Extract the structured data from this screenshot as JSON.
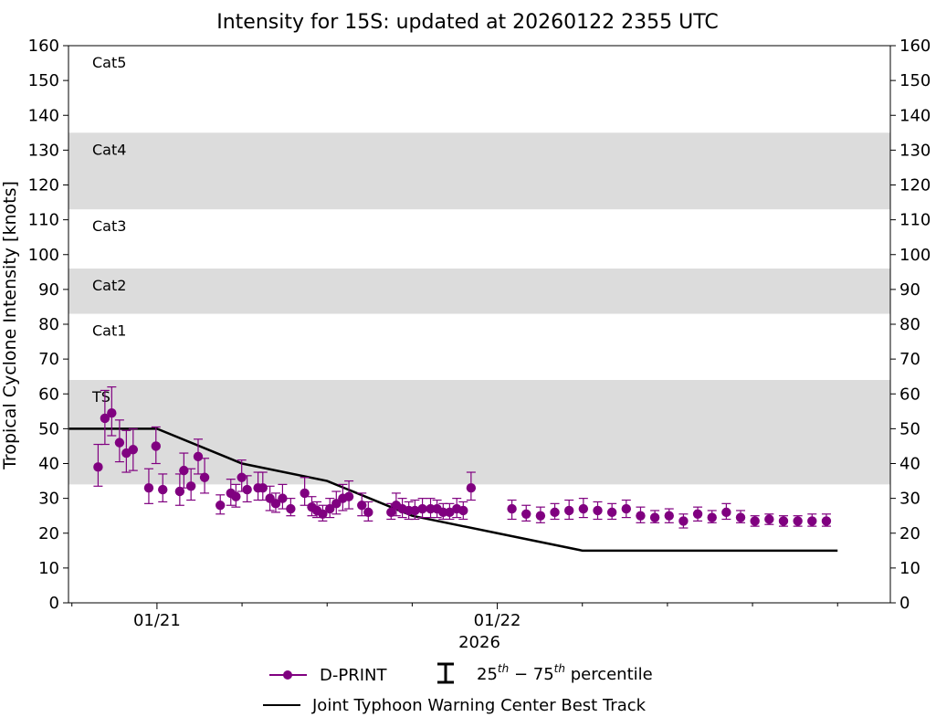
{
  "chart_data": {
    "type": "scatter",
    "title": "Intensity for 15S: updated at 20260122 2355 UTC",
    "ylabel": "Tropical Cyclone Intensity [knots]",
    "xlabel": "2026",
    "ylim": [
      0,
      160
    ],
    "yticks": [
      0,
      10,
      20,
      30,
      40,
      50,
      60,
      70,
      80,
      90,
      100,
      110,
      120,
      130,
      140,
      150,
      160
    ],
    "xlim": [
      -0.26,
      2.155
    ],
    "x_unit": "days since 01/21 00Z",
    "x_major_ticks": [
      {
        "x": 0,
        "label": "01/21"
      },
      {
        "x": 1,
        "label": "01/22"
      }
    ],
    "x_minor_ticks": [
      -0.25,
      0.25,
      0.5,
      0.75,
      1.25,
      1.5,
      1.75,
      2.0
    ],
    "grid": false,
    "category_bands": [
      {
        "label": "TS",
        "low": 34,
        "high": 64,
        "shaded": true
      },
      {
        "label": "Cat1",
        "low": 64,
        "high": 83,
        "shaded": false
      },
      {
        "label": "Cat2",
        "low": 83,
        "high": 96,
        "shaded": true
      },
      {
        "label": "Cat3",
        "low": 96,
        "high": 113,
        "shaded": false
      },
      {
        "label": "Cat4",
        "low": 113,
        "high": 135,
        "shaded": true
      },
      {
        "label": "Cat5",
        "low": 135,
        "high": 160,
        "shaded": false
      }
    ],
    "band_color": "#dcdcdc",
    "series": [
      {
        "name": "D-PRINT",
        "kind": "scatter-errorbar",
        "color": "#800080",
        "points": [
          {
            "x": -0.173,
            "y": 39,
            "lo": 33.5,
            "hi": 45.5
          },
          {
            "x": -0.153,
            "y": 53,
            "lo": 45.5,
            "hi": 61
          },
          {
            "x": -0.133,
            "y": 54.5,
            "lo": 48,
            "hi": 62
          },
          {
            "x": -0.11,
            "y": 46,
            "lo": 40.5,
            "hi": 52.5
          },
          {
            "x": -0.09,
            "y": 43,
            "lo": 37.5,
            "hi": 49.5
          },
          {
            "x": -0.07,
            "y": 44,
            "lo": 38,
            "hi": 50
          },
          {
            "x": -0.024,
            "y": 33,
            "lo": 28.5,
            "hi": 38.5
          },
          {
            "x": -0.003,
            "y": 45,
            "lo": 40,
            "hi": 50.5
          },
          {
            "x": 0.017,
            "y": 32.5,
            "lo": 29,
            "hi": 37
          },
          {
            "x": 0.067,
            "y": 32,
            "lo": 28,
            "hi": 37
          },
          {
            "x": 0.079,
            "y": 38,
            "lo": 33,
            "hi": 43
          },
          {
            "x": 0.1,
            "y": 33.5,
            "lo": 29.5,
            "hi": 38.5
          },
          {
            "x": 0.121,
            "y": 42,
            "lo": 37,
            "hi": 47
          },
          {
            "x": 0.14,
            "y": 36,
            "lo": 31.5,
            "hi": 41.5
          },
          {
            "x": 0.186,
            "y": 28,
            "lo": 25.5,
            "hi": 31
          },
          {
            "x": 0.217,
            "y": 31.5,
            "lo": 28,
            "hi": 35.5
          },
          {
            "x": 0.232,
            "y": 30.5,
            "lo": 27.5,
            "hi": 34
          },
          {
            "x": 0.249,
            "y": 36,
            "lo": 32,
            "hi": 41
          },
          {
            "x": 0.265,
            "y": 32.5,
            "lo": 29,
            "hi": 36.5
          },
          {
            "x": 0.297,
            "y": 33,
            "lo": 29.5,
            "hi": 37.5
          },
          {
            "x": 0.311,
            "y": 33,
            "lo": 29.5,
            "hi": 37.5
          },
          {
            "x": 0.332,
            "y": 30,
            "lo": 26.5,
            "hi": 33.5
          },
          {
            "x": 0.349,
            "y": 28.5,
            "lo": 26,
            "hi": 31.5
          },
          {
            "x": 0.369,
            "y": 30,
            "lo": 27,
            "hi": 34
          },
          {
            "x": 0.393,
            "y": 27,
            "lo": 25,
            "hi": 30
          },
          {
            "x": 0.434,
            "y": 31.5,
            "lo": 28,
            "hi": 36
          },
          {
            "x": 0.455,
            "y": 27.5,
            "lo": 25,
            "hi": 30.5
          },
          {
            "x": 0.47,
            "y": 26.5,
            "lo": 24.5,
            "hi": 29
          },
          {
            "x": 0.487,
            "y": 25.5,
            "lo": 23.5,
            "hi": 28
          },
          {
            "x": 0.508,
            "y": 27,
            "lo": 24.5,
            "hi": 30
          },
          {
            "x": 0.527,
            "y": 28.5,
            "lo": 25.5,
            "hi": 32
          },
          {
            "x": 0.546,
            "y": 30,
            "lo": 26.5,
            "hi": 34
          },
          {
            "x": 0.564,
            "y": 30.5,
            "lo": 27,
            "hi": 35
          },
          {
            "x": 0.602,
            "y": 28,
            "lo": 25,
            "hi": 31.5
          },
          {
            "x": 0.621,
            "y": 26,
            "lo": 23.5,
            "hi": 29
          },
          {
            "x": 0.688,
            "y": 26,
            "lo": 24,
            "hi": 28.5
          },
          {
            "x": 0.703,
            "y": 28,
            "lo": 25,
            "hi": 31.5
          },
          {
            "x": 0.721,
            "y": 27,
            "lo": 24.5,
            "hi": 30
          },
          {
            "x": 0.74,
            "y": 26.5,
            "lo": 24,
            "hi": 29
          },
          {
            "x": 0.758,
            "y": 26.5,
            "lo": 24,
            "hi": 29.5
          },
          {
            "x": 0.78,
            "y": 27,
            "lo": 24.5,
            "hi": 30
          },
          {
            "x": 0.804,
            "y": 27,
            "lo": 24.5,
            "hi": 30
          },
          {
            "x": 0.823,
            "y": 27,
            "lo": 24.5,
            "hi": 29.5
          },
          {
            "x": 0.841,
            "y": 26,
            "lo": 24,
            "hi": 28.5
          },
          {
            "x": 0.86,
            "y": 26,
            "lo": 24,
            "hi": 28.5
          },
          {
            "x": 0.881,
            "y": 27,
            "lo": 24.5,
            "hi": 30
          },
          {
            "x": 0.9,
            "y": 26.5,
            "lo": 24,
            "hi": 29
          },
          {
            "x": 0.923,
            "y": 33,
            "lo": 29.5,
            "hi": 37.5
          },
          {
            "x": 1.043,
            "y": 27,
            "lo": 24,
            "hi": 29.5
          },
          {
            "x": 1.085,
            "y": 25.5,
            "lo": 23.5,
            "hi": 28
          },
          {
            "x": 1.127,
            "y": 25,
            "lo": 23,
            "hi": 27.5
          },
          {
            "x": 1.169,
            "y": 26,
            "lo": 24,
            "hi": 28.5
          },
          {
            "x": 1.211,
            "y": 26.5,
            "lo": 24,
            "hi": 29.5
          },
          {
            "x": 1.253,
            "y": 27,
            "lo": 24.5,
            "hi": 30
          },
          {
            "x": 1.295,
            "y": 26.5,
            "lo": 24,
            "hi": 29
          },
          {
            "x": 1.337,
            "y": 26,
            "lo": 24,
            "hi": 28.5
          },
          {
            "x": 1.379,
            "y": 27,
            "lo": 24.5,
            "hi": 29.5
          },
          {
            "x": 1.421,
            "y": 25,
            "lo": 23,
            "hi": 27.5
          },
          {
            "x": 1.463,
            "y": 24.5,
            "lo": 23,
            "hi": 26.5
          },
          {
            "x": 1.505,
            "y": 25,
            "lo": 23,
            "hi": 27
          },
          {
            "x": 1.547,
            "y": 23.5,
            "lo": 21.5,
            "hi": 25.5
          },
          {
            "x": 1.589,
            "y": 25.5,
            "lo": 23.5,
            "hi": 27.5
          },
          {
            "x": 1.631,
            "y": 24.5,
            "lo": 23,
            "hi": 26.5
          },
          {
            "x": 1.673,
            "y": 26,
            "lo": 24,
            "hi": 28.5
          },
          {
            "x": 1.715,
            "y": 24.5,
            "lo": 23,
            "hi": 26.5
          },
          {
            "x": 1.757,
            "y": 23.5,
            "lo": 22,
            "hi": 25
          },
          {
            "x": 1.799,
            "y": 24,
            "lo": 22.5,
            "hi": 25.5
          },
          {
            "x": 1.841,
            "y": 23.5,
            "lo": 22,
            "hi": 25
          },
          {
            "x": 1.883,
            "y": 23.5,
            "lo": 22,
            "hi": 25
          },
          {
            "x": 1.925,
            "y": 23.5,
            "lo": 22,
            "hi": 25.5
          },
          {
            "x": 1.967,
            "y": 23.5,
            "lo": 22,
            "hi": 25.5
          }
        ]
      },
      {
        "name": "Joint Typhoon Warning Center Best Track",
        "kind": "line",
        "color": "#000000",
        "points": [
          {
            "x": -0.258,
            "y": 50
          },
          {
            "x": 0.0,
            "y": 50
          },
          {
            "x": 0.25,
            "y": 40
          },
          {
            "x": 0.5,
            "y": 35
          },
          {
            "x": 0.75,
            "y": 25
          },
          {
            "x": 1.0,
            "y": 20
          },
          {
            "x": 1.25,
            "y": 15
          },
          {
            "x": 2.0,
            "y": 15
          }
        ]
      }
    ],
    "legend": {
      "position": "bottom",
      "entries": [
        {
          "label": "D-PRINT",
          "marker": "circle-line",
          "color": "#800080"
        },
        {
          "label": "25th − 75th percentile",
          "marker": "errorbar",
          "color": "#000000"
        },
        {
          "label": "Joint Typhoon Warning Center Best Track",
          "marker": "line",
          "color": "#000000"
        }
      ],
      "percentile_label": {
        "pre1": "25",
        "sup1": "th",
        "mid": " − 75",
        "sup2": "th",
        "post": " percentile"
      }
    }
  }
}
